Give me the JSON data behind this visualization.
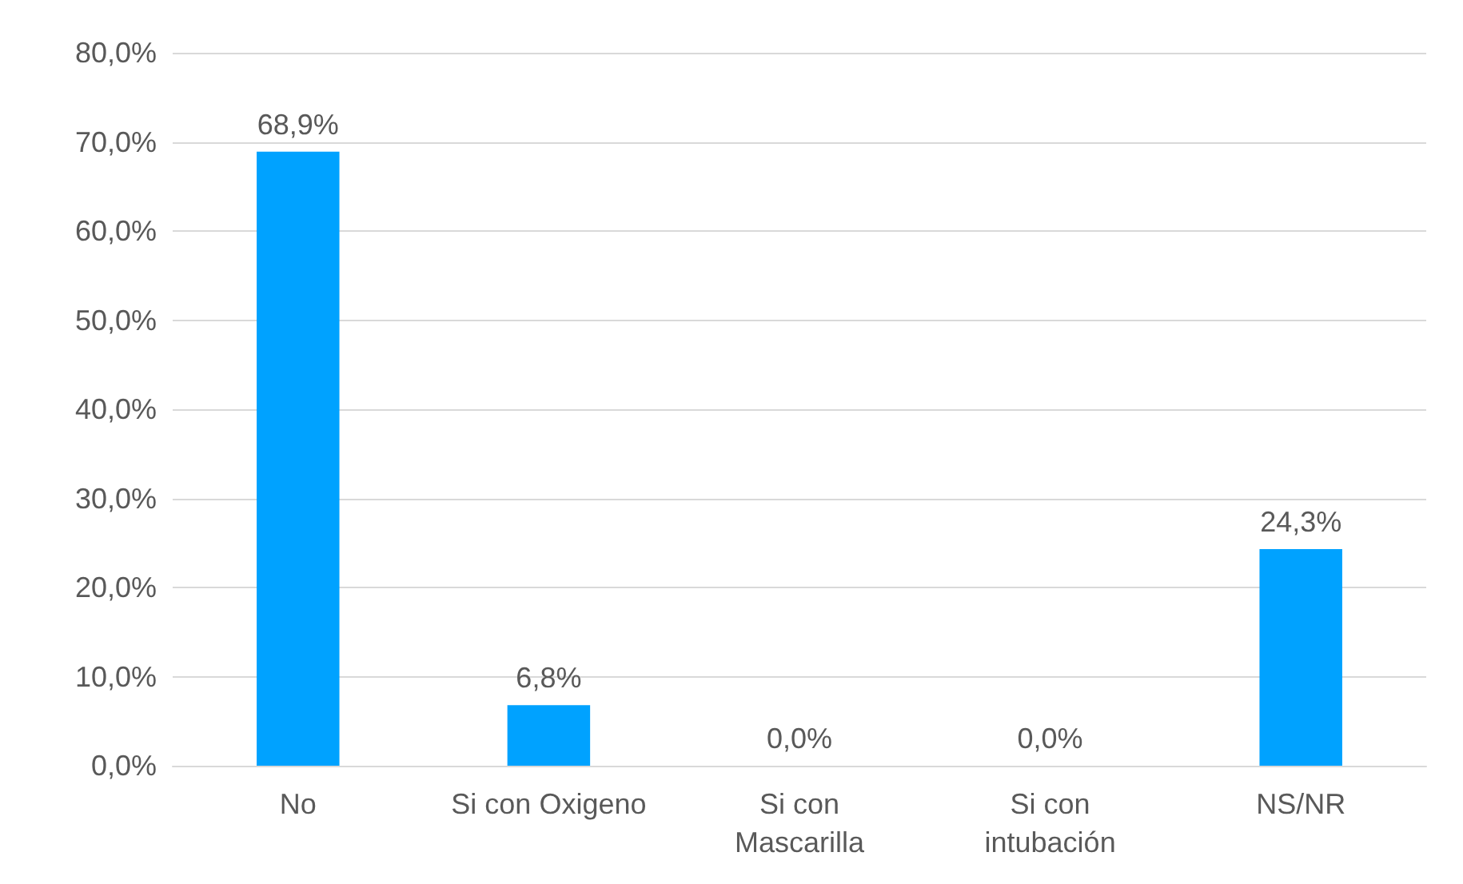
{
  "chart_data": {
    "type": "bar",
    "categories": [
      "No",
      "Si con Oxigeno",
      "Si con\nMascarilla",
      "Si con\nintubación",
      "NS/NR"
    ],
    "values": [
      68.9,
      6.8,
      0,
      0,
      24.3
    ],
    "value_labels": [
      "68,9%",
      "6,8%",
      "0,0%",
      "0,0%",
      "24,3%"
    ],
    "color": "#00a2ff",
    "ylim": [
      0,
      80
    ],
    "yticks": [
      {
        "value": 0,
        "label": "0,0%"
      },
      {
        "value": 10,
        "label": "10,0%"
      },
      {
        "value": 20,
        "label": "20,0%"
      },
      {
        "value": 30,
        "label": "30,0%"
      },
      {
        "value": 40,
        "label": "40,0%"
      },
      {
        "value": 50,
        "label": "50,0%"
      },
      {
        "value": 60,
        "label": "60,0%"
      },
      {
        "value": 70,
        "label": "70,0%"
      },
      {
        "value": 80,
        "label": "80,0%"
      }
    ],
    "grid": "y"
  }
}
